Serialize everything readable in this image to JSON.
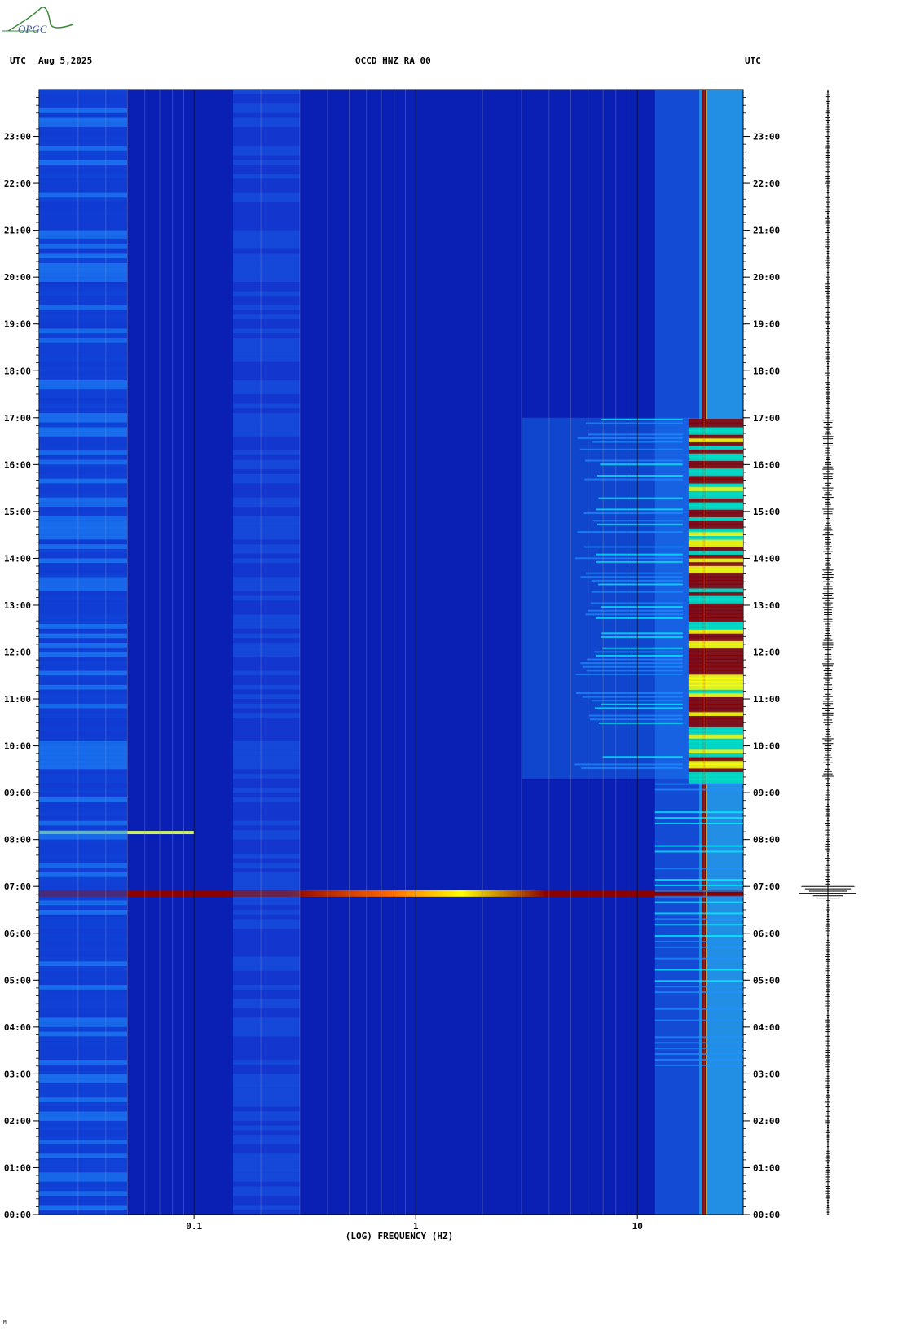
{
  "header": {
    "left_tz": "UTC",
    "date": "Aug 5,2025",
    "station": "OCCD HNZ RA 00",
    "right_tz": "UTC"
  },
  "logo": {
    "text": "OPGC"
  },
  "chart_data": {
    "type": "heatmap",
    "title": "OCCD HNZ RA 00",
    "xlabel": "(LOG) FREQUENCY (HZ)",
    "x_scale": "log",
    "xlim": [
      0.02,
      30
    ],
    "x_ticks": [
      {
        "value": 0.1,
        "label": "0.1"
      },
      {
        "value": 1,
        "label": "1"
      },
      {
        "value": 10,
        "label": "10"
      }
    ],
    "ylim_hours": [
      0,
      24
    ],
    "y_ticks": [
      "00:00",
      "01:00",
      "02:00",
      "03:00",
      "04:00",
      "05:00",
      "06:00",
      "07:00",
      "08:00",
      "09:00",
      "10:00",
      "11:00",
      "12:00",
      "13:00",
      "14:00",
      "15:00",
      "16:00",
      "17:00",
      "18:00",
      "19:00",
      "20:00",
      "21:00",
      "22:00",
      "23:00"
    ],
    "colormap": [
      "#00008b",
      "#0000ff",
      "#1e90ff",
      "#00ffff",
      "#ffff00",
      "#ff8c00",
      "#8b0000"
    ],
    "background_color": "#0a1fb4",
    "features": [
      {
        "name": "earthquake",
        "time_hours": 6.85,
        "fmin": 0.02,
        "fmax": 30
      },
      {
        "name": "microseism",
        "fmin": 0.15,
        "fmax": 0.3
      },
      {
        "name": "long_period_noise",
        "fmin": 0.02,
        "fmax": 0.05
      },
      {
        "name": "persistent_line",
        "freq": 20
      },
      {
        "name": "cultural_noise",
        "start_hours": 9.3,
        "end_hours": 17.0,
        "fmin": 3,
        "fmax": 30
      },
      {
        "name": "transient_line",
        "time_hours": 8.15,
        "fmin": 0.02,
        "fmax": 0.1
      }
    ]
  },
  "footnote": "M"
}
